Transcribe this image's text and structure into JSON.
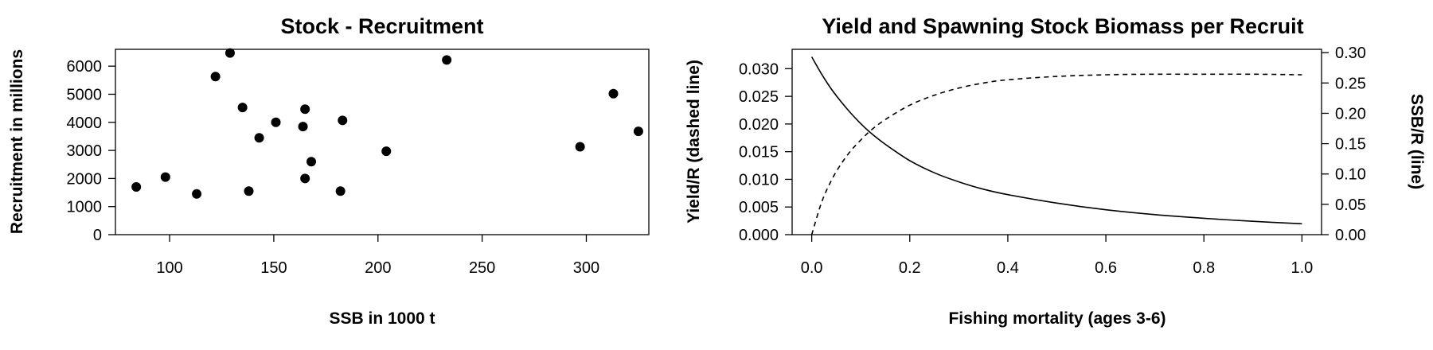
{
  "chart_data": [
    {
      "type": "scatter",
      "title": "Stock - Recruitment",
      "xlabel": "SSB in 1000 t",
      "ylabel": "Recruitment in millions",
      "xlim": [
        74,
        330
      ],
      "ylim": [
        0,
        6600
      ],
      "xticks": [
        100,
        150,
        200,
        250,
        300
      ],
      "yticks": [
        0,
        1000,
        2000,
        3000,
        4000,
        5000,
        6000
      ],
      "points": [
        {
          "x": 84,
          "y": 1700
        },
        {
          "x": 98,
          "y": 2050
        },
        {
          "x": 113,
          "y": 1450
        },
        {
          "x": 122,
          "y": 5630
        },
        {
          "x": 129,
          "y": 6470
        },
        {
          "x": 135,
          "y": 4530
        },
        {
          "x": 138,
          "y": 1550
        },
        {
          "x": 143,
          "y": 3450
        },
        {
          "x": 151,
          "y": 4000
        },
        {
          "x": 164,
          "y": 3850
        },
        {
          "x": 165,
          "y": 4470
        },
        {
          "x": 165,
          "y": 2000
        },
        {
          "x": 168,
          "y": 2600
        },
        {
          "x": 182,
          "y": 1550
        },
        {
          "x": 183,
          "y": 4070
        },
        {
          "x": 204,
          "y": 2970
        },
        {
          "x": 233,
          "y": 6220
        },
        {
          "x": 297,
          "y": 3130
        },
        {
          "x": 313,
          "y": 5020
        },
        {
          "x": 325,
          "y": 3680
        }
      ],
      "grid": false
    },
    {
      "type": "line",
      "title": "Yield and Spawning Stock Biomass per Recruit",
      "xlabel": "Fishing mortality (ages 3-6)",
      "ylabel_left": "Yield/R (dashed line)",
      "ylabel_right": "SSB/R (line)",
      "xlim": [
        -0.04,
        1.04
      ],
      "ylim_left": [
        0,
        0.0335
      ],
      "ylim_right": [
        0,
        0.3055
      ],
      "xticks": [
        "0.0",
        "0.2",
        "0.4",
        "0.6",
        "0.8",
        "1.0"
      ],
      "yticks_left": [
        "0.000",
        "0.005",
        "0.010",
        "0.015",
        "0.020",
        "0.025",
        "0.030"
      ],
      "yticks_right": [
        "0.00",
        "0.05",
        "0.10",
        "0.15",
        "0.20",
        "0.25",
        "0.30"
      ],
      "x": [
        0.0,
        0.02,
        0.04,
        0.06,
        0.08,
        0.1,
        0.12,
        0.15,
        0.2,
        0.25,
        0.3,
        0.35,
        0.4,
        0.5,
        0.6,
        0.7,
        0.8,
        0.9,
        1.0
      ],
      "series": [
        {
          "name": "Yield/R",
          "axis": "left",
          "style": "dashed",
          "values": [
            0.0,
            0.0058,
            0.0098,
            0.0128,
            0.0152,
            0.0171,
            0.0188,
            0.0208,
            0.0234,
            0.0252,
            0.0265,
            0.0274,
            0.028,
            0.0286,
            0.0289,
            0.029,
            0.029,
            0.029,
            0.0289
          ]
        },
        {
          "name": "SSB/R",
          "axis": "right",
          "style": "solid",
          "values": [
            0.293,
            0.265,
            0.24,
            0.219,
            0.2,
            0.183,
            0.168,
            0.149,
            0.122,
            0.102,
            0.087,
            0.075,
            0.066,
            0.052,
            0.041,
            0.033,
            0.027,
            0.022,
            0.018
          ]
        }
      ],
      "grid": false
    }
  ]
}
